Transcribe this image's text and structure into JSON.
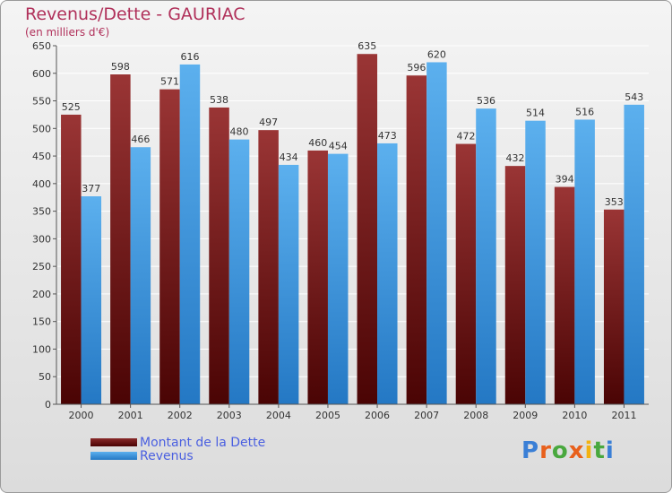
{
  "header": {
    "title": "Revenus/Dette - GAURIAC",
    "subtitle": "(en milliers d'€)"
  },
  "logo": {
    "letters": [
      "P",
      "r",
      "o",
      "x",
      "i",
      "t",
      "i"
    ],
    "colors": [
      "#3a7fd6",
      "#e8601c",
      "#49a83e",
      "#e8601c",
      "#f3b212",
      "#49a83e",
      "#3a7fd6"
    ]
  },
  "chart_data": {
    "type": "bar",
    "categories": [
      "2000",
      "2001",
      "2002",
      "2003",
      "2004",
      "2005",
      "2006",
      "2007",
      "2008",
      "2009",
      "2010",
      "2011"
    ],
    "series": [
      {
        "name": "Montant de la Dette",
        "values": [
          525,
          598,
          571,
          538,
          497,
          460,
          635,
          596,
          472,
          432,
          394,
          353
        ],
        "color": "#7a1f1f"
      },
      {
        "name": "Revenus",
        "values": [
          377,
          466,
          616,
          480,
          434,
          454,
          473,
          620,
          536,
          514,
          516,
          543
        ],
        "color": "#4da3e6"
      }
    ],
    "ylim": [
      0,
      650
    ],
    "yticks": [
      0,
      50,
      100,
      150,
      200,
      250,
      300,
      350,
      400,
      450,
      500,
      550,
      600,
      650
    ],
    "grid": true,
    "data_labels": true,
    "legend": "bottom-left"
  }
}
